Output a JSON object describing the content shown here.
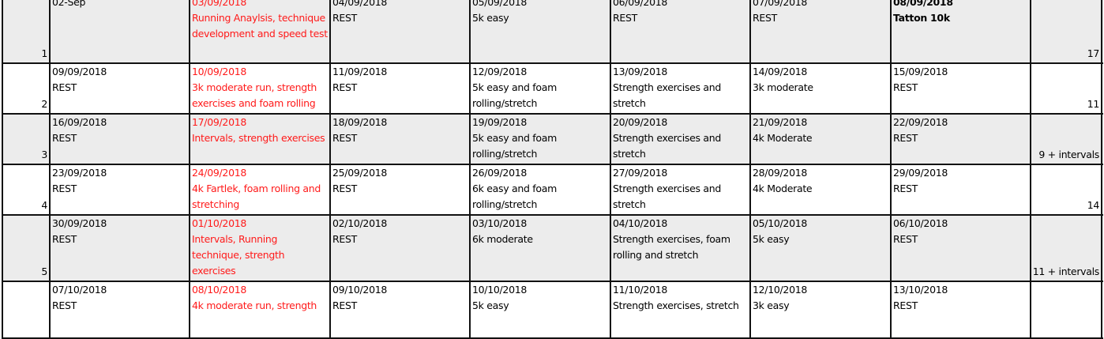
{
  "accent_red": "#ff1a1a",
  "weeks": [
    {
      "week": "1",
      "total": "17",
      "days": [
        {
          "date": "02-Sep",
          "activity": ""
        },
        {
          "date": "03/09/2018",
          "activity": "Running Anaylsis, technique development and speed test"
        },
        {
          "date": "04/09/2018",
          "activity": "REST"
        },
        {
          "date": "05/09/2018",
          "activity": "5k easy"
        },
        {
          "date": "06/09/2018",
          "activity": "REST"
        },
        {
          "date": "07/09/2018",
          "activity": "REST"
        },
        {
          "date": "08/09/2018",
          "activity": "Tatton 10k"
        }
      ]
    },
    {
      "week": "2",
      "total": "11",
      "days": [
        {
          "date": "09/09/2018",
          "activity": "REST"
        },
        {
          "date": "10/09/2018",
          "activity": "3k moderate run, strength exercises and foam rolling"
        },
        {
          "date": "11/09/2018",
          "activity": "REST"
        },
        {
          "date": "12/09/2018",
          "activity": "5k easy and foam rolling/stretch"
        },
        {
          "date": "13/09/2018",
          "activity": "Strength exercises and stretch"
        },
        {
          "date": "14/09/2018",
          "activity": "3k moderate"
        },
        {
          "date": "15/09/2018",
          "activity": "REST"
        }
      ]
    },
    {
      "week": "3",
      "total": "9 + intervals",
      "days": [
        {
          "date": "16/09/2018",
          "activity": "REST"
        },
        {
          "date": "17/09/2018",
          "activity": "Intervals, strength exercises"
        },
        {
          "date": "18/09/2018",
          "activity": "REST"
        },
        {
          "date": "19/09/2018",
          "activity": "5k easy and foam rolling/stretch"
        },
        {
          "date": "20/09/2018",
          "activity": "Strength exercises and stretch"
        },
        {
          "date": "21/09/2018",
          "activity": "4k Moderate"
        },
        {
          "date": "22/09/2018",
          "activity": "REST"
        }
      ]
    },
    {
      "week": "4",
      "total": "14",
      "days": [
        {
          "date": "23/09/2018",
          "activity": "REST"
        },
        {
          "date": "24/09/2018",
          "activity": "4k Fartlek, foam rolling and stretching"
        },
        {
          "date": "25/09/2018",
          "activity": "REST"
        },
        {
          "date": "26/09/2018",
          "activity": "6k easy and foam rolling/stretch"
        },
        {
          "date": "27/09/2018",
          "activity": "Strength exercises and stretch"
        },
        {
          "date": "28/09/2018",
          "activity": "4k Moderate"
        },
        {
          "date": "29/09/2018",
          "activity": "REST"
        }
      ]
    },
    {
      "week": "5",
      "total": "11 + intervals",
      "days": [
        {
          "date": "30/09/2018",
          "activity": "REST"
        },
        {
          "date": "01/10/2018",
          "activity": "Intervals, Running technique, strength exercises"
        },
        {
          "date": "02/10/2018",
          "activity": "REST"
        },
        {
          "date": "03/10/2018",
          "activity": "6k moderate"
        },
        {
          "date": "04/10/2018",
          "activity": "Strength exercises, foam rolling and stretch"
        },
        {
          "date": "05/10/2018",
          "activity": "5k easy"
        },
        {
          "date": "06/10/2018",
          "activity": "REST"
        }
      ]
    },
    {
      "week": "",
      "total": "",
      "days": [
        {
          "date": "07/10/2018",
          "activity": "REST"
        },
        {
          "date": "08/10/2018",
          "activity": "4k moderate run, strength"
        },
        {
          "date": "09/10/2018",
          "activity": "REST"
        },
        {
          "date": "10/10/2018",
          "activity": "5k easy"
        },
        {
          "date": "11/10/2018",
          "activity": "Strength exercises, stretch"
        },
        {
          "date": "12/10/2018",
          "activity": "3k easy"
        },
        {
          "date": "13/10/2018",
          "activity": "REST"
        }
      ]
    }
  ]
}
